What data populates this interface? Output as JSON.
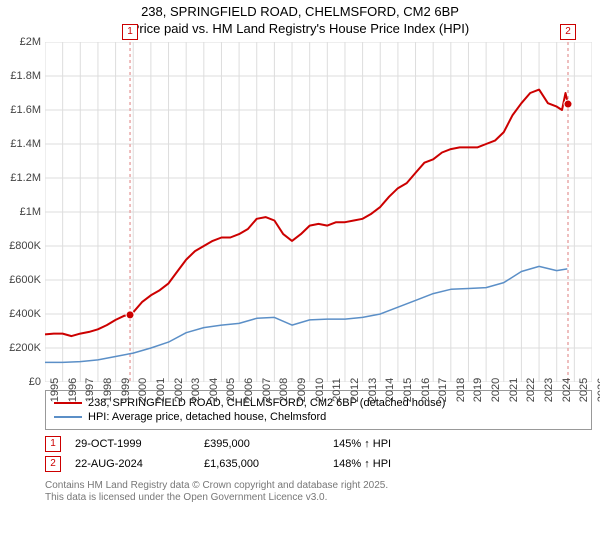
{
  "title_line1": "238, SPRINGFIELD ROAD, CHELMSFORD, CM2 6BP",
  "title_line2": "Price paid vs. HM Land Registry's House Price Index (HPI)",
  "chart": {
    "type": "line",
    "background_color": "#ffffff",
    "grid_color": "#dddddd",
    "plot_border_color": "#cccccc",
    "x": {
      "min": 1995,
      "max": 2026,
      "tick_step": 1,
      "prefix": ""
    },
    "y": {
      "min": 0,
      "max": 2000000,
      "tick_step": 200000,
      "tick_labels": [
        "£0",
        "£200K",
        "£400K",
        "£600K",
        "£800K",
        "£1M",
        "£1.2M",
        "£1.4M",
        "£1.6M",
        "£1.8M",
        "£2M"
      ]
    },
    "series": [
      {
        "name": "238, SPRINGFIELD ROAD, CHELMSFORD, CM2 6BP (detached house)",
        "color": "#cc0000",
        "width": 2,
        "xy": [
          [
            1995,
            280000
          ],
          [
            1995.5,
            285000
          ],
          [
            1996,
            285000
          ],
          [
            1996.5,
            270000
          ],
          [
            1997,
            285000
          ],
          [
            1997.5,
            295000
          ],
          [
            1998,
            310000
          ],
          [
            1998.5,
            335000
          ],
          [
            1999,
            365000
          ],
          [
            1999.5,
            390000
          ],
          [
            1999.82,
            395000
          ],
          [
            2000,
            410000
          ],
          [
            2000.5,
            470000
          ],
          [
            2001,
            510000
          ],
          [
            2001.5,
            540000
          ],
          [
            2002,
            580000
          ],
          [
            2002.5,
            650000
          ],
          [
            2003,
            720000
          ],
          [
            2003.5,
            770000
          ],
          [
            2004,
            800000
          ],
          [
            2004.5,
            830000
          ],
          [
            2005,
            850000
          ],
          [
            2005.5,
            850000
          ],
          [
            2006,
            870000
          ],
          [
            2006.5,
            900000
          ],
          [
            2007,
            960000
          ],
          [
            2007.5,
            970000
          ],
          [
            2008,
            950000
          ],
          [
            2008.5,
            870000
          ],
          [
            2009,
            830000
          ],
          [
            2009.5,
            870000
          ],
          [
            2010,
            920000
          ],
          [
            2010.5,
            930000
          ],
          [
            2011,
            920000
          ],
          [
            2011.5,
            940000
          ],
          [
            2012,
            940000
          ],
          [
            2012.5,
            950000
          ],
          [
            2013,
            960000
          ],
          [
            2013.5,
            990000
          ],
          [
            2014,
            1030000
          ],
          [
            2014.5,
            1090000
          ],
          [
            2015,
            1140000
          ],
          [
            2015.5,
            1170000
          ],
          [
            2016,
            1230000
          ],
          [
            2016.5,
            1290000
          ],
          [
            2017,
            1310000
          ],
          [
            2017.5,
            1350000
          ],
          [
            2018,
            1370000
          ],
          [
            2018.5,
            1380000
          ],
          [
            2019,
            1380000
          ],
          [
            2019.5,
            1380000
          ],
          [
            2020,
            1400000
          ],
          [
            2020.5,
            1420000
          ],
          [
            2021,
            1470000
          ],
          [
            2021.5,
            1570000
          ],
          [
            2022,
            1640000
          ],
          [
            2022.5,
            1700000
          ],
          [
            2023,
            1720000
          ],
          [
            2023.5,
            1640000
          ],
          [
            2024,
            1620000
          ],
          [
            2024.3,
            1600000
          ],
          [
            2024.5,
            1700000
          ],
          [
            2024.64,
            1635000
          ]
        ]
      },
      {
        "name": "HPI: Average price, detached house, Chelmsford",
        "color": "#5b8fc7",
        "width": 1.5,
        "xy": [
          [
            1995,
            115000
          ],
          [
            1996,
            115000
          ],
          [
            1997,
            120000
          ],
          [
            1998,
            130000
          ],
          [
            1999,
            150000
          ],
          [
            2000,
            170000
          ],
          [
            2001,
            200000
          ],
          [
            2002,
            235000
          ],
          [
            2003,
            290000
          ],
          [
            2004,
            320000
          ],
          [
            2005,
            335000
          ],
          [
            2006,
            345000
          ],
          [
            2007,
            375000
          ],
          [
            2008,
            380000
          ],
          [
            2009,
            335000
          ],
          [
            2010,
            365000
          ],
          [
            2011,
            370000
          ],
          [
            2012,
            370000
          ],
          [
            2013,
            380000
          ],
          [
            2014,
            400000
          ],
          [
            2015,
            440000
          ],
          [
            2016,
            480000
          ],
          [
            2017,
            520000
          ],
          [
            2018,
            545000
          ],
          [
            2019,
            550000
          ],
          [
            2020,
            555000
          ],
          [
            2021,
            585000
          ],
          [
            2022,
            650000
          ],
          [
            2023,
            680000
          ],
          [
            2024,
            655000
          ],
          [
            2024.6,
            665000
          ]
        ]
      }
    ],
    "markers": [
      {
        "label": "1",
        "x": 1999.82,
        "y": 395000,
        "line_color": "#e9a9a9",
        "date": "29-OCT-1999",
        "price": "£395,000",
        "arrow": "↑",
        "hpi": "145% ↑ HPI"
      },
      {
        "label": "2",
        "x": 2024.64,
        "y": 1635000,
        "line_color": "#e9a9a9",
        "date": "22-AUG-2024",
        "price": "£1,635,000",
        "arrow": "",
        "hpi": "148% ↑ HPI"
      }
    ]
  },
  "legend_title": "",
  "footer_line1": "Contains HM Land Registry data © Crown copyright and database right 2025.",
  "footer_line2": "This data is licensed under the Open Government Licence v3.0."
}
